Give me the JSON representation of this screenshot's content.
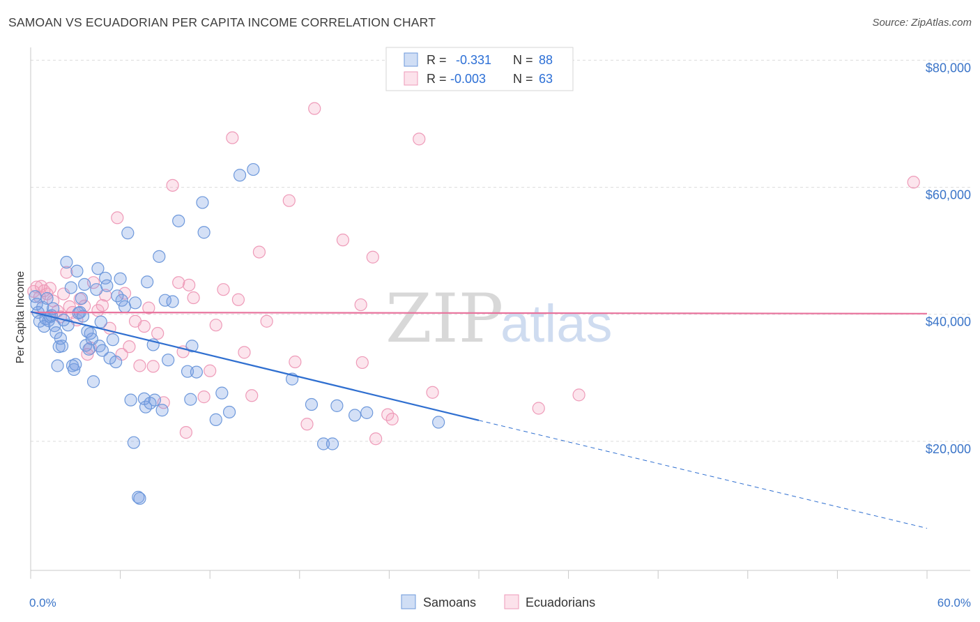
{
  "header": {
    "title": "SAMOAN VS ECUADORIAN PER CAPITA INCOME CORRELATION CHART",
    "source": "Source: ZipAtlas.com"
  },
  "legend_top": {
    "rows": [
      {
        "r_label": "R =",
        "r_value": "-0.331",
        "n_label": "N =",
        "n_value": "88",
        "color": "#6d98db"
      },
      {
        "r_label": "R =",
        "r_value": "-0.003",
        "n_label": "N =",
        "n_value": "63",
        "color": "#ee9ab8"
      }
    ]
  },
  "legend_bottom": {
    "items": [
      {
        "label": "Samoans",
        "color": "#6d98db"
      },
      {
        "label": "Ecuadorians",
        "color": "#ee9ab8"
      }
    ]
  },
  "watermark": {
    "zip": "ZIP",
    "atlas": "atlas"
  },
  "chart_data": {
    "type": "scatter",
    "title": "SAMOAN VS ECUADORIAN PER CAPITA INCOME CORRELATION CHART",
    "xlabel": "",
    "ylabel": "Per Capita Income",
    "xlim": [
      0,
      60
    ],
    "ylim": [
      0,
      84000
    ],
    "x_tick_labels": [
      {
        "value": 0,
        "label": "0.0%"
      },
      {
        "value": 60,
        "label": "60.0%"
      }
    ],
    "y_tick_labels": [
      {
        "value": 20000,
        "label": "$20,000"
      },
      {
        "value": 40000,
        "label": "$40,000"
      },
      {
        "value": 60000,
        "label": "$60,000"
      },
      {
        "value": 80000,
        "label": "$80,000"
      }
    ],
    "grid": "horizontal dashed",
    "series": [
      {
        "name": "Samoans",
        "color": "#6d98db",
        "r": -0.331,
        "n": 88,
        "trend": {
          "x0": 0,
          "y0": 40400,
          "x1": 30,
          "y1": 23300,
          "dash_to_x": 60,
          "dash_to_y": 6300
        },
        "points": [
          [
            0.3,
            42800
          ],
          [
            0.5,
            40300
          ],
          [
            0.6,
            38900
          ],
          [
            0.8,
            41100
          ],
          [
            0.9,
            38100
          ],
          [
            1.0,
            39300
          ],
          [
            1.1,
            42500
          ],
          [
            1.2,
            39000
          ],
          [
            1.3,
            39600
          ],
          [
            1.4,
            39800
          ],
          [
            1.6,
            38200
          ],
          [
            1.7,
            37100
          ],
          [
            1.8,
            31900
          ],
          [
            1.9,
            34900
          ],
          [
            2.1,
            35000
          ],
          [
            2.4,
            48200
          ],
          [
            2.5,
            38300
          ],
          [
            2.7,
            44200
          ],
          [
            2.8,
            31900
          ],
          [
            2.9,
            31300
          ],
          [
            3.0,
            32100
          ],
          [
            3.1,
            46800
          ],
          [
            3.3,
            40300
          ],
          [
            3.4,
            42500
          ],
          [
            3.5,
            39700
          ],
          [
            3.6,
            44700
          ],
          [
            3.7,
            35100
          ],
          [
            3.8,
            37300
          ],
          [
            3.9,
            34500
          ],
          [
            4.1,
            36100
          ],
          [
            4.2,
            29400
          ],
          [
            4.4,
            43900
          ],
          [
            4.5,
            47200
          ],
          [
            4.6,
            35000
          ],
          [
            4.8,
            34300
          ],
          [
            5.0,
            45700
          ],
          [
            5.1,
            44500
          ],
          [
            5.3,
            33100
          ],
          [
            5.5,
            36000
          ],
          [
            5.7,
            32500
          ],
          [
            6.0,
            45600
          ],
          [
            6.1,
            42200
          ],
          [
            6.5,
            52800
          ],
          [
            6.7,
            26500
          ],
          [
            6.9,
            19800
          ],
          [
            7.0,
            41800
          ],
          [
            7.2,
            11200
          ],
          [
            7.6,
            26700
          ],
          [
            7.7,
            25400
          ],
          [
            7.8,
            45100
          ],
          [
            8.0,
            26000
          ],
          [
            8.2,
            35200
          ],
          [
            8.3,
            26500
          ],
          [
            8.6,
            49100
          ],
          [
            8.8,
            24900
          ],
          [
            9.0,
            42200
          ],
          [
            9.2,
            32800
          ],
          [
            9.9,
            54700
          ],
          [
            10.5,
            31000
          ],
          [
            10.7,
            26600
          ],
          [
            10.8,
            35000
          ],
          [
            11.1,
            30900
          ],
          [
            11.5,
            57600
          ],
          [
            11.6,
            52900
          ],
          [
            12.4,
            23400
          ],
          [
            12.8,
            27600
          ],
          [
            13.3,
            24600
          ],
          [
            14.0,
            61900
          ],
          [
            14.9,
            62800
          ],
          [
            17.5,
            29800
          ],
          [
            18.8,
            25800
          ],
          [
            19.6,
            19600
          ],
          [
            20.2,
            19600
          ],
          [
            20.5,
            25600
          ],
          [
            21.7,
            24100
          ],
          [
            22.5,
            24500
          ],
          [
            27.3,
            23000
          ],
          [
            7.3,
            11000
          ],
          [
            2.2,
            39100
          ],
          [
            3.2,
            40200
          ],
          [
            4.0,
            37000
          ],
          [
            5.8,
            42900
          ],
          [
            0.4,
            41600
          ],
          [
            1.5,
            40900
          ],
          [
            6.3,
            41200
          ],
          [
            9.5,
            42000
          ],
          [
            2.0,
            36200
          ],
          [
            4.7,
            38800
          ]
        ]
      },
      {
        "name": "Ecuadorians",
        "color": "#ee9ab8",
        "r": -0.003,
        "n": 63,
        "trend": {
          "x0": 0,
          "y0": 40300,
          "x1": 60,
          "y1": 40100
        },
        "points": [
          [
            0.2,
            43600
          ],
          [
            0.4,
            44300
          ],
          [
            0.6,
            42700
          ],
          [
            0.7,
            44400
          ],
          [
            0.9,
            43700
          ],
          [
            1.1,
            43200
          ],
          [
            1.3,
            44100
          ],
          [
            1.5,
            42100
          ],
          [
            1.8,
            40500
          ],
          [
            2.0,
            39600
          ],
          [
            2.2,
            43200
          ],
          [
            2.4,
            46600
          ],
          [
            2.6,
            41200
          ],
          [
            2.8,
            40300
          ],
          [
            3.1,
            39100
          ],
          [
            3.3,
            42400
          ],
          [
            3.6,
            41300
          ],
          [
            3.8,
            33700
          ],
          [
            4.0,
            34700
          ],
          [
            4.2,
            45000
          ],
          [
            4.5,
            40600
          ],
          [
            4.8,
            41400
          ],
          [
            5.0,
            43000
          ],
          [
            5.3,
            37800
          ],
          [
            5.8,
            55200
          ],
          [
            6.1,
            33700
          ],
          [
            6.3,
            43300
          ],
          [
            6.6,
            34900
          ],
          [
            7.0,
            38900
          ],
          [
            7.3,
            31900
          ],
          [
            7.6,
            38100
          ],
          [
            7.9,
            41000
          ],
          [
            8.2,
            31800
          ],
          [
            8.5,
            37000
          ],
          [
            8.9,
            26100
          ],
          [
            9.5,
            60300
          ],
          [
            9.9,
            45000
          ],
          [
            10.2,
            34100
          ],
          [
            10.4,
            21400
          ],
          [
            10.6,
            44600
          ],
          [
            10.9,
            42600
          ],
          [
            11.6,
            27000
          ],
          [
            12.0,
            31100
          ],
          [
            12.4,
            38300
          ],
          [
            12.9,
            43900
          ],
          [
            13.5,
            67800
          ],
          [
            13.9,
            42300
          ],
          [
            14.3,
            34000
          ],
          [
            14.8,
            27200
          ],
          [
            15.3,
            49800
          ],
          [
            15.8,
            38900
          ],
          [
            17.3,
            57900
          ],
          [
            17.7,
            32500
          ],
          [
            18.5,
            22700
          ],
          [
            19.0,
            72400
          ],
          [
            20.9,
            51700
          ],
          [
            22.1,
            41500
          ],
          [
            22.2,
            32400
          ],
          [
            22.9,
            49000
          ],
          [
            23.1,
            20400
          ],
          [
            23.9,
            24200
          ],
          [
            26.0,
            67600
          ],
          [
            26.9,
            27700
          ]
        ],
        "extra_points": [
          [
            24.2,
            23500
          ],
          [
            34.0,
            25200
          ],
          [
            36.7,
            27300
          ],
          [
            59.1,
            60800
          ]
        ]
      }
    ]
  }
}
